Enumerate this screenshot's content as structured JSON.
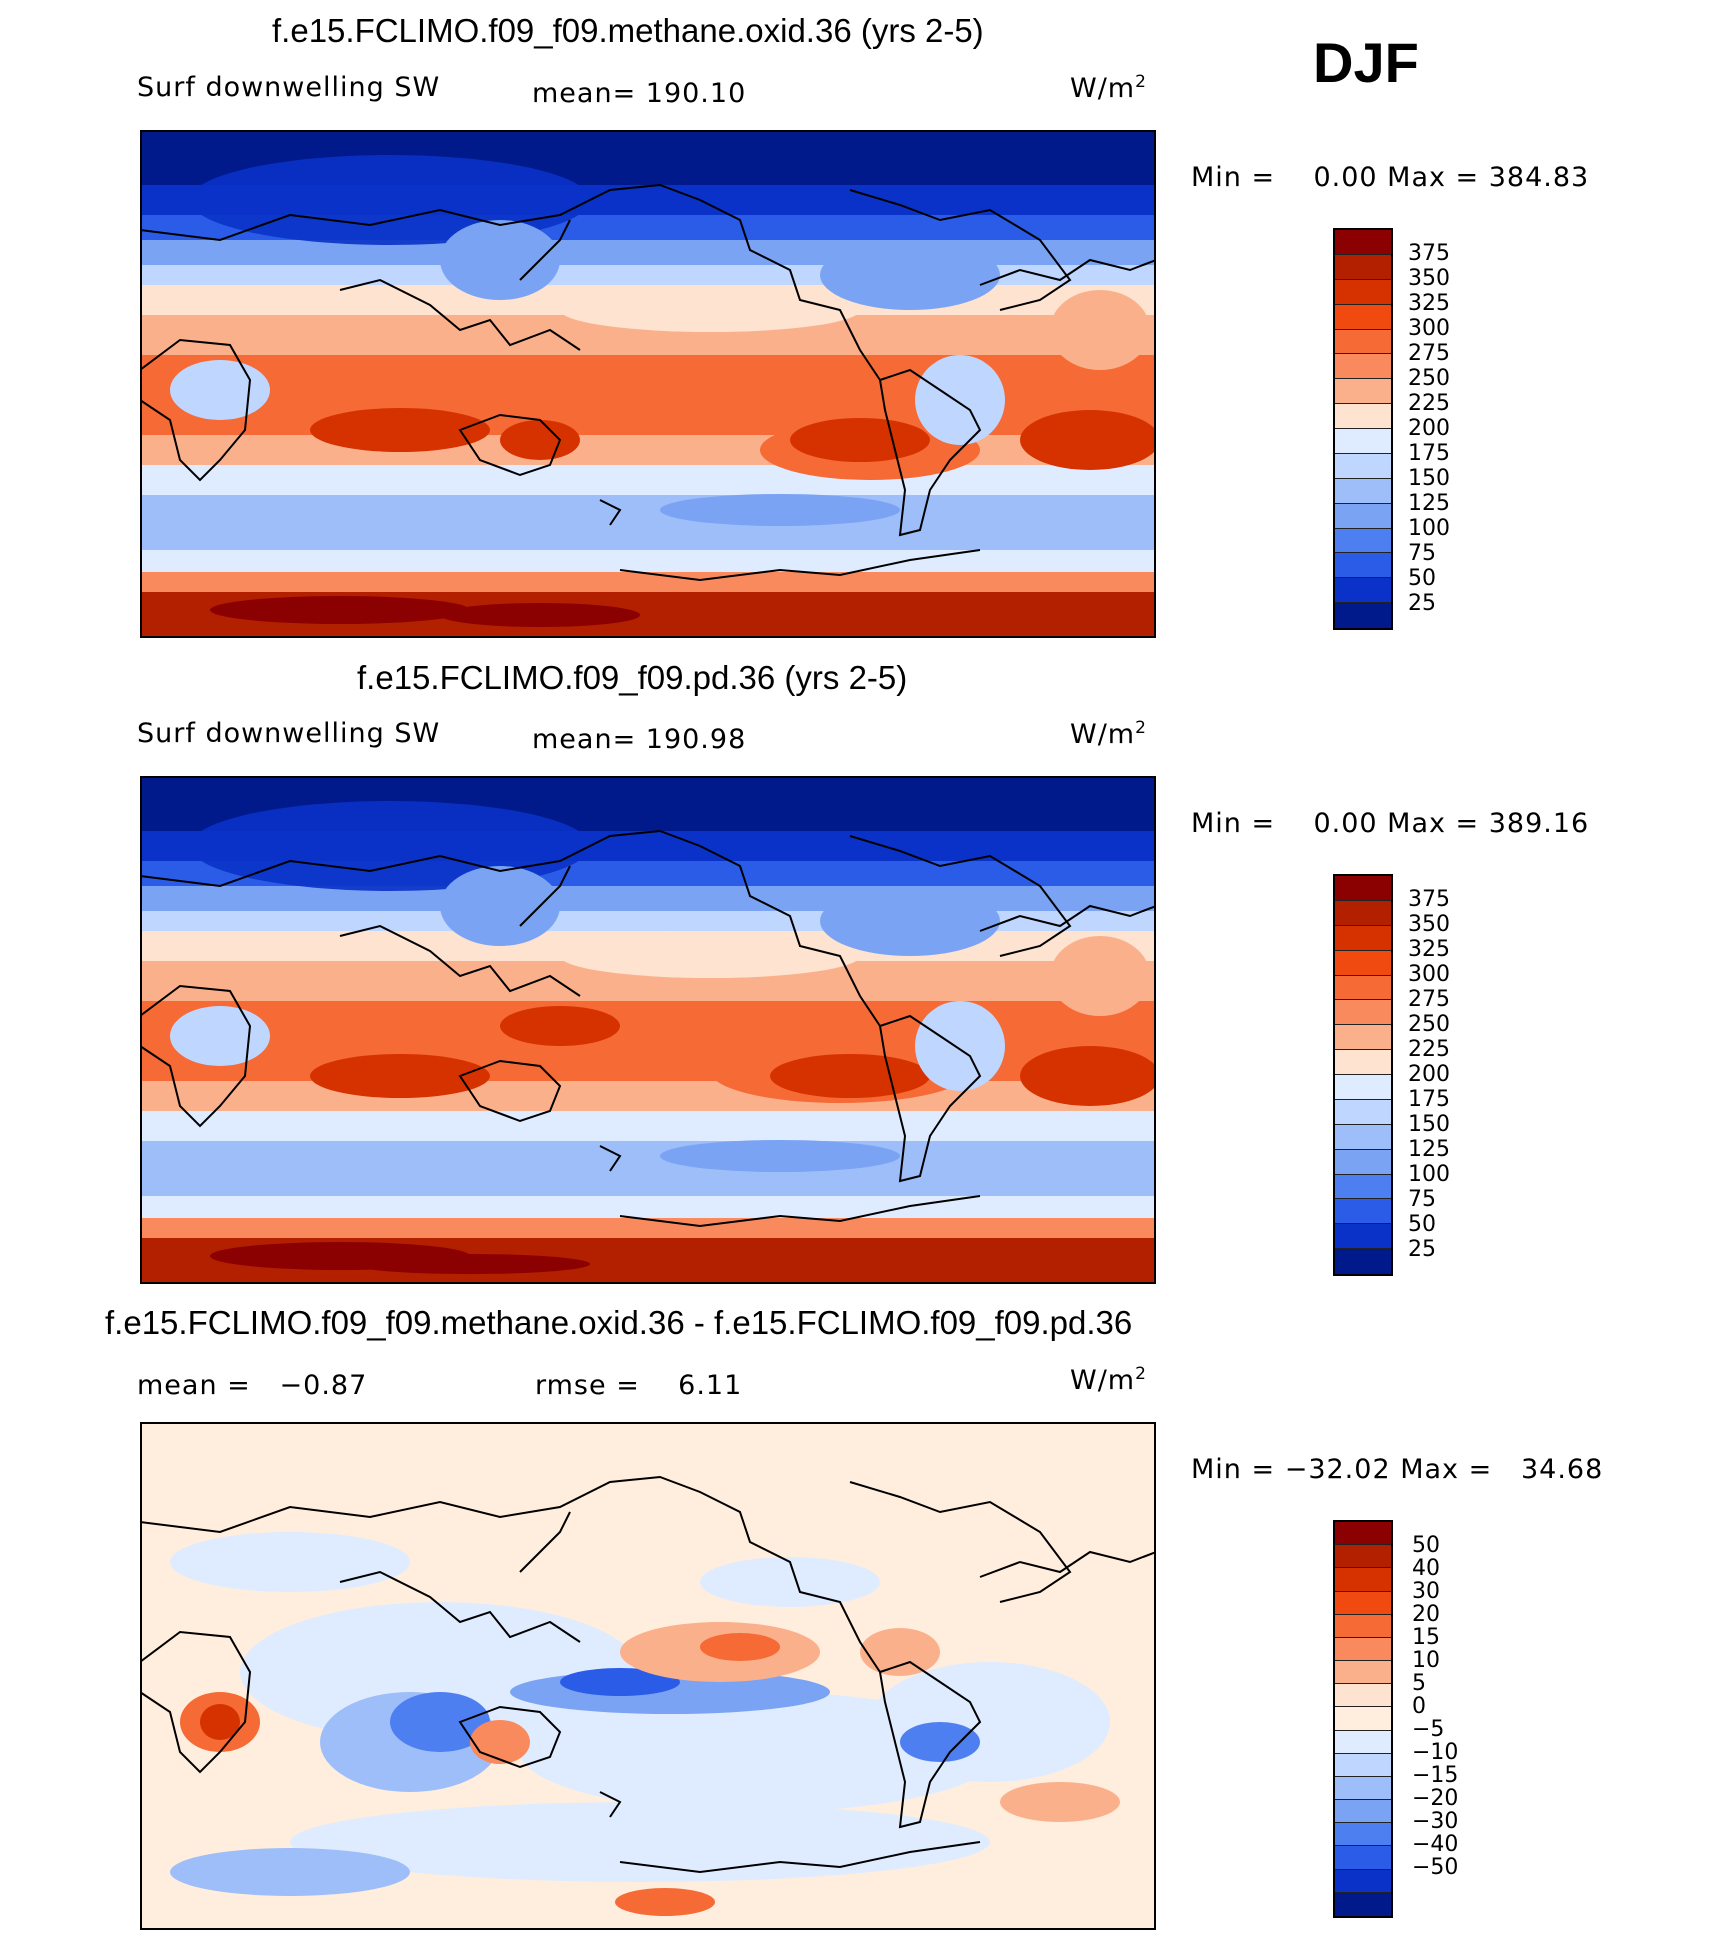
{
  "season": "DJF",
  "panels": [
    {
      "title": "f.e15.FCLIMO.f09_f09.methane.oxid.36 (yrs 2-5)",
      "left_label": "Surf downwelling SW",
      "center_label": "mean= 190.10",
      "units": "W/m",
      "units_sup": "2",
      "minmax": "Min =    0.00 Max = 384.83",
      "colorbar_labels": [
        "375",
        "350",
        "325",
        "300",
        "275",
        "250",
        "225",
        "200",
        "175",
        "150",
        "125",
        "100",
        "75",
        "50",
        "25"
      ]
    },
    {
      "title": "f.e15.FCLIMO.f09_f09.pd.36 (yrs 2-5)",
      "left_label": "Surf downwelling SW",
      "center_label": "mean= 190.98",
      "units": "W/m",
      "units_sup": "2",
      "minmax": "Min =    0.00 Max = 389.16",
      "colorbar_labels": [
        "375",
        "350",
        "325",
        "300",
        "275",
        "250",
        "225",
        "200",
        "175",
        "150",
        "125",
        "100",
        "75",
        "50",
        "25"
      ]
    },
    {
      "title": "f.e15.FCLIMO.f09_f09.methane.oxid.36 - f.e15.FCLIMO.f09_f09.pd.36",
      "left_label": "mean =   −0.87",
      "center_label": "rmse =    6.11",
      "units": "W/m",
      "units_sup": "2",
      "minmax": "Min = −32.02 Max =   34.68",
      "colorbar_labels": [
        "50",
        "40",
        "30",
        "20",
        "15",
        "10",
        "5",
        "0",
        "−5",
        "−10",
        "−15",
        "−20",
        "−30",
        "−40",
        "−50"
      ]
    }
  ],
  "colors": {
    "abs_scale": [
      "#8b0000",
      "#b22000",
      "#d63200",
      "#f14a10",
      "#f56a35",
      "#f88a5e",
      "#fbb08c",
      "#fde3d0",
      "#dfecff",
      "#bfd6ff",
      "#9ebefa",
      "#7aa3f3",
      "#4d7ff0",
      "#2a5ce8",
      "#0a32c8",
      "#001a8c"
    ],
    "diff_scale": [
      "#8b0000",
      "#b22000",
      "#d63200",
      "#f14a10",
      "#f56a35",
      "#f88a5e",
      "#fbb08c",
      "#fde3d0",
      "#ffeedd",
      "#dfecff",
      "#bfd6ff",
      "#9ebefa",
      "#7aa3f3",
      "#4d7ff0",
      "#2a5ce8",
      "#0a32c8",
      "#001a8c"
    ]
  }
}
